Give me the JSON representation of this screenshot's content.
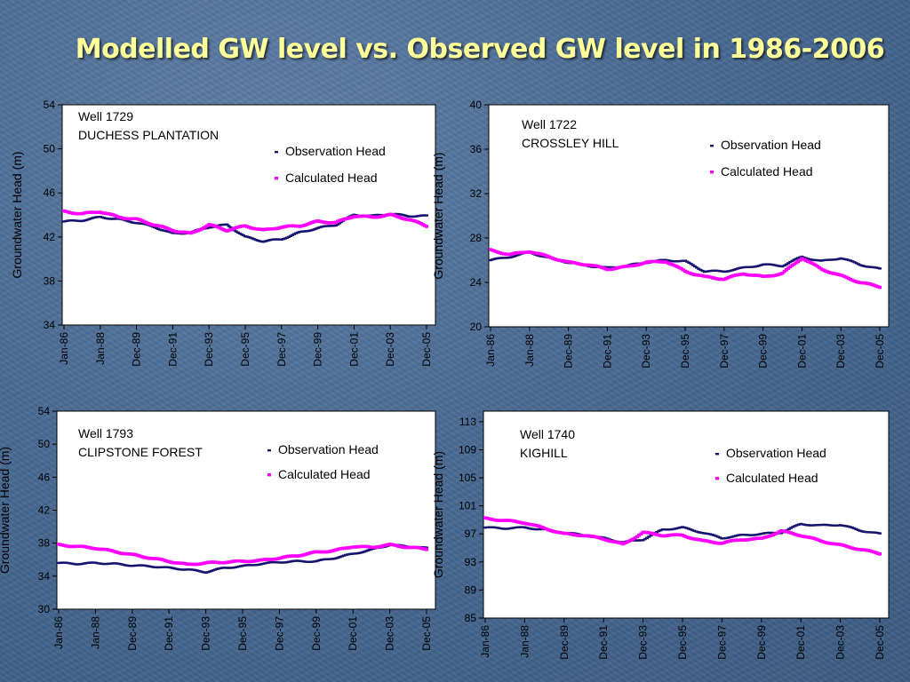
{
  "title": "Modelled GW level vs. Observed GW level in 1986-2006",
  "colors": {
    "observation": "#14146e",
    "calculated": "#ff00ff",
    "title": "#ffff99"
  },
  "chart_data": [
    {
      "type": "scatter",
      "well": "Well 1729",
      "site": "DUCHESS PLANTATION",
      "ylabel": "Groundwater Head (m)",
      "xlabel": "",
      "categories": [
        "Jan-86",
        "Jan-88",
        "Dec-89",
        "Dec-91",
        "Dec-93",
        "Dec-95",
        "Dec-97",
        "Dec-99",
        "Dec-01",
        "Dec-03",
        "Dec-05"
      ],
      "yticks": [
        34,
        38,
        42,
        46,
        50,
        54
      ],
      "ylim": [
        34,
        54
      ],
      "legend": "top-right",
      "series": [
        {
          "name": "Observation Head",
          "x": [
            0,
            0.5,
            1,
            1.5,
            2,
            2.5,
            3,
            3.5,
            4,
            4.5,
            5,
            5.5,
            6,
            6.5,
            7,
            7.5,
            8,
            8.5,
            9,
            9.5,
            10
          ],
          "y": [
            43.4,
            43.5,
            43.8,
            43.6,
            43.3,
            42.9,
            42.3,
            42.4,
            42.9,
            43.1,
            42.0,
            41.6,
            41.8,
            42.4,
            42.8,
            43.1,
            44.0,
            43.9,
            44.1,
            43.9,
            43.9
          ]
        },
        {
          "name": "Calculated Head",
          "x": [
            0,
            0.5,
            1,
            1.5,
            2,
            2.5,
            3,
            3.5,
            4,
            4.5,
            5,
            5.5,
            6,
            6.5,
            7,
            7.5,
            8,
            8.5,
            9,
            9.5,
            10
          ],
          "y": [
            44.3,
            44.1,
            44.3,
            43.8,
            43.6,
            43.1,
            42.6,
            42.3,
            43.1,
            42.6,
            43.0,
            42.6,
            42.9,
            43.0,
            43.4,
            43.3,
            43.9,
            43.8,
            44.0,
            43.6,
            43.0
          ]
        }
      ]
    },
    {
      "type": "scatter",
      "well": "Well 1722",
      "site": "CROSSLEY HILL",
      "ylabel": "Groundwater Head (m)",
      "xlabel": "",
      "categories": [
        "Jan-86",
        "Jan-88",
        "Dec-89",
        "Dec-91",
        "Dec-93",
        "Dec-95",
        "Dec-97",
        "Dec-99",
        "Dec-01",
        "Dec-03",
        "Dec-05"
      ],
      "yticks": [
        20,
        24,
        28,
        32,
        36,
        40
      ],
      "ylim": [
        20,
        40
      ],
      "legend": "top-right",
      "series": [
        {
          "name": "Observation Head",
          "x": [
            0,
            0.5,
            1,
            1.5,
            2,
            2.5,
            3,
            3.5,
            4,
            4.5,
            5,
            5.5,
            6,
            6.5,
            7,
            7.5,
            8,
            8.5,
            9,
            9.5,
            10
          ],
          "y": [
            26.0,
            26.3,
            26.7,
            26.2,
            25.8,
            25.5,
            25.3,
            25.5,
            25.8,
            26.0,
            25.9,
            25.0,
            25.0,
            25.3,
            25.6,
            25.5,
            26.3,
            25.9,
            26.2,
            25.6,
            25.2
          ]
        },
        {
          "name": "Calculated Head",
          "x": [
            0,
            0.5,
            1,
            1.5,
            2,
            2.5,
            3,
            3.5,
            4,
            4.5,
            5,
            5.5,
            6,
            6.5,
            7,
            7.5,
            8,
            8.5,
            9,
            9.5,
            10
          ],
          "y": [
            26.9,
            26.5,
            26.8,
            26.3,
            25.8,
            25.6,
            25.2,
            25.4,
            25.8,
            25.9,
            25.0,
            24.5,
            24.3,
            24.8,
            24.5,
            24.8,
            26.2,
            25.2,
            24.6,
            24.0,
            23.6
          ]
        }
      ]
    },
    {
      "type": "scatter",
      "well": "Well 1793",
      "site": "CLIPSTONE FOREST",
      "ylabel": "Groundwater Head (m)",
      "xlabel": "",
      "categories": [
        "Jan-86",
        "Jan-88",
        "Dec-89",
        "Dec-91",
        "Dec-93",
        "Dec-95",
        "Dec-97",
        "Dec-99",
        "Dec-01",
        "Dec-03",
        "Dec-05"
      ],
      "yticks": [
        30,
        34,
        38,
        42,
        46,
        50,
        54
      ],
      "ylim": [
        30,
        54
      ],
      "legend": "top-right",
      "series": [
        {
          "name": "Observation Head",
          "x": [
            0,
            0.5,
            1,
            1.5,
            2,
            2.5,
            3,
            3.5,
            4,
            4.5,
            5,
            5.5,
            6,
            6.5,
            7,
            7.5,
            8,
            8.5,
            9,
            9.5,
            10
          ],
          "y": [
            35.6,
            35.5,
            35.6,
            35.5,
            35.3,
            35.2,
            35.0,
            34.8,
            34.5,
            35.0,
            35.2,
            35.5,
            35.7,
            35.8,
            35.8,
            36.2,
            36.7,
            37.2,
            37.8,
            37.6,
            37.4
          ]
        },
        {
          "name": "Calculated Head",
          "x": [
            0,
            0.5,
            1,
            1.5,
            2,
            2.5,
            3,
            3.5,
            4,
            4.5,
            5,
            5.5,
            6,
            6.5,
            7,
            7.5,
            8,
            8.5,
            9,
            9.5,
            10
          ],
          "y": [
            37.8,
            37.6,
            37.4,
            37.0,
            36.6,
            36.2,
            35.8,
            35.4,
            35.6,
            35.7,
            35.8,
            35.9,
            36.2,
            36.5,
            36.9,
            37.1,
            37.6,
            37.5,
            37.8,
            37.5,
            37.3
          ]
        }
      ]
    },
    {
      "type": "scatter",
      "well": "Well  1740",
      "site": "KIGHILL",
      "ylabel": "Groundwater Head (m)",
      "xlabel": "",
      "categories": [
        "Jan-86",
        "Jan-88",
        "Dec-89",
        "Dec-91",
        "Dec-93",
        "Dec-95",
        "Dec-97",
        "Dec-99",
        "Dec-01",
        "Dec-03",
        "Dec-05"
      ],
      "yticks": [
        85,
        89,
        93,
        97,
        101,
        105,
        109,
        113
      ],
      "ylim": [
        85,
        114.5
      ],
      "legend": "top-right",
      "series": [
        {
          "name": "Observation Head",
          "x": [
            0,
            0.5,
            1,
            1.5,
            2,
            2.5,
            3,
            3.5,
            4,
            4.5,
            5,
            5.5,
            6,
            6.5,
            7,
            7.5,
            8,
            8.5,
            9,
            9.5,
            10
          ],
          "y": [
            97.9,
            97.8,
            97.9,
            97.6,
            97.2,
            96.8,
            96.4,
            95.8,
            96.2,
            97.6,
            97.9,
            97.2,
            96.4,
            96.8,
            97.0,
            97.2,
            98.4,
            98.2,
            98.3,
            97.5,
            97.0
          ]
        },
        {
          "name": "Calculated Head",
          "x": [
            0,
            0.5,
            1,
            1.5,
            2,
            2.5,
            3,
            3.5,
            4,
            4.5,
            5,
            5.5,
            6,
            6.5,
            7,
            7.5,
            8,
            8.5,
            9,
            9.5,
            10
          ],
          "y": [
            99.2,
            98.9,
            98.6,
            97.8,
            97.0,
            96.8,
            96.3,
            95.5,
            97.2,
            96.8,
            96.8,
            96.0,
            95.7,
            96.2,
            96.3,
            97.4,
            96.8,
            96.0,
            95.4,
            94.8,
            94.2
          ]
        }
      ]
    }
  ]
}
